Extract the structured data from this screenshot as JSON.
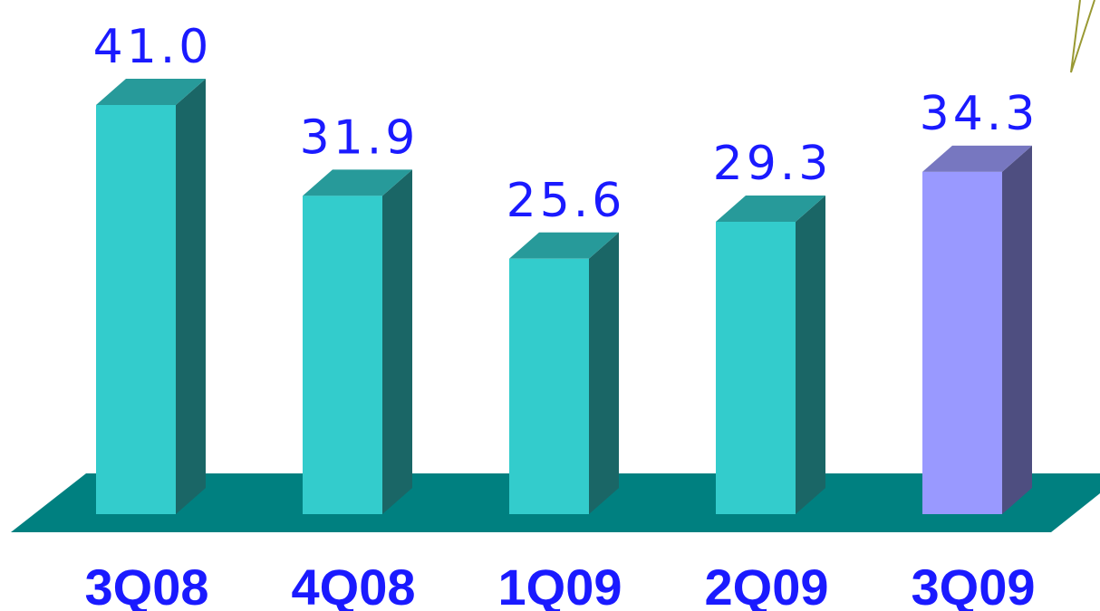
{
  "chart_data": {
    "type": "bar",
    "style": "3d",
    "categories": [
      "3Q08",
      "4Q08",
      "1Q09",
      "2Q09",
      "3Q09"
    ],
    "values": [
      41.0,
      31.9,
      25.6,
      29.3,
      34.3
    ],
    "value_labels": [
      "41.0",
      "31.9",
      "25.6",
      "29.3",
      "34.3"
    ],
    "highlight_index": 4,
    "title": "",
    "xlabel": "",
    "ylabel": "",
    "ylim": [
      0,
      41.0
    ],
    "grid": false,
    "legend": "none"
  },
  "colors": {
    "bar_front": "#33cccc",
    "bar_top": "#279a9a",
    "bar_side": "#1a6666",
    "highlight_front": "#9999ff",
    "highlight_top": "#7777c0",
    "highlight_side": "#4e4e80",
    "floor": "#008080",
    "value_text": "#1a1aff",
    "category_text": "#1a1aff",
    "callout_line": "#999933"
  }
}
